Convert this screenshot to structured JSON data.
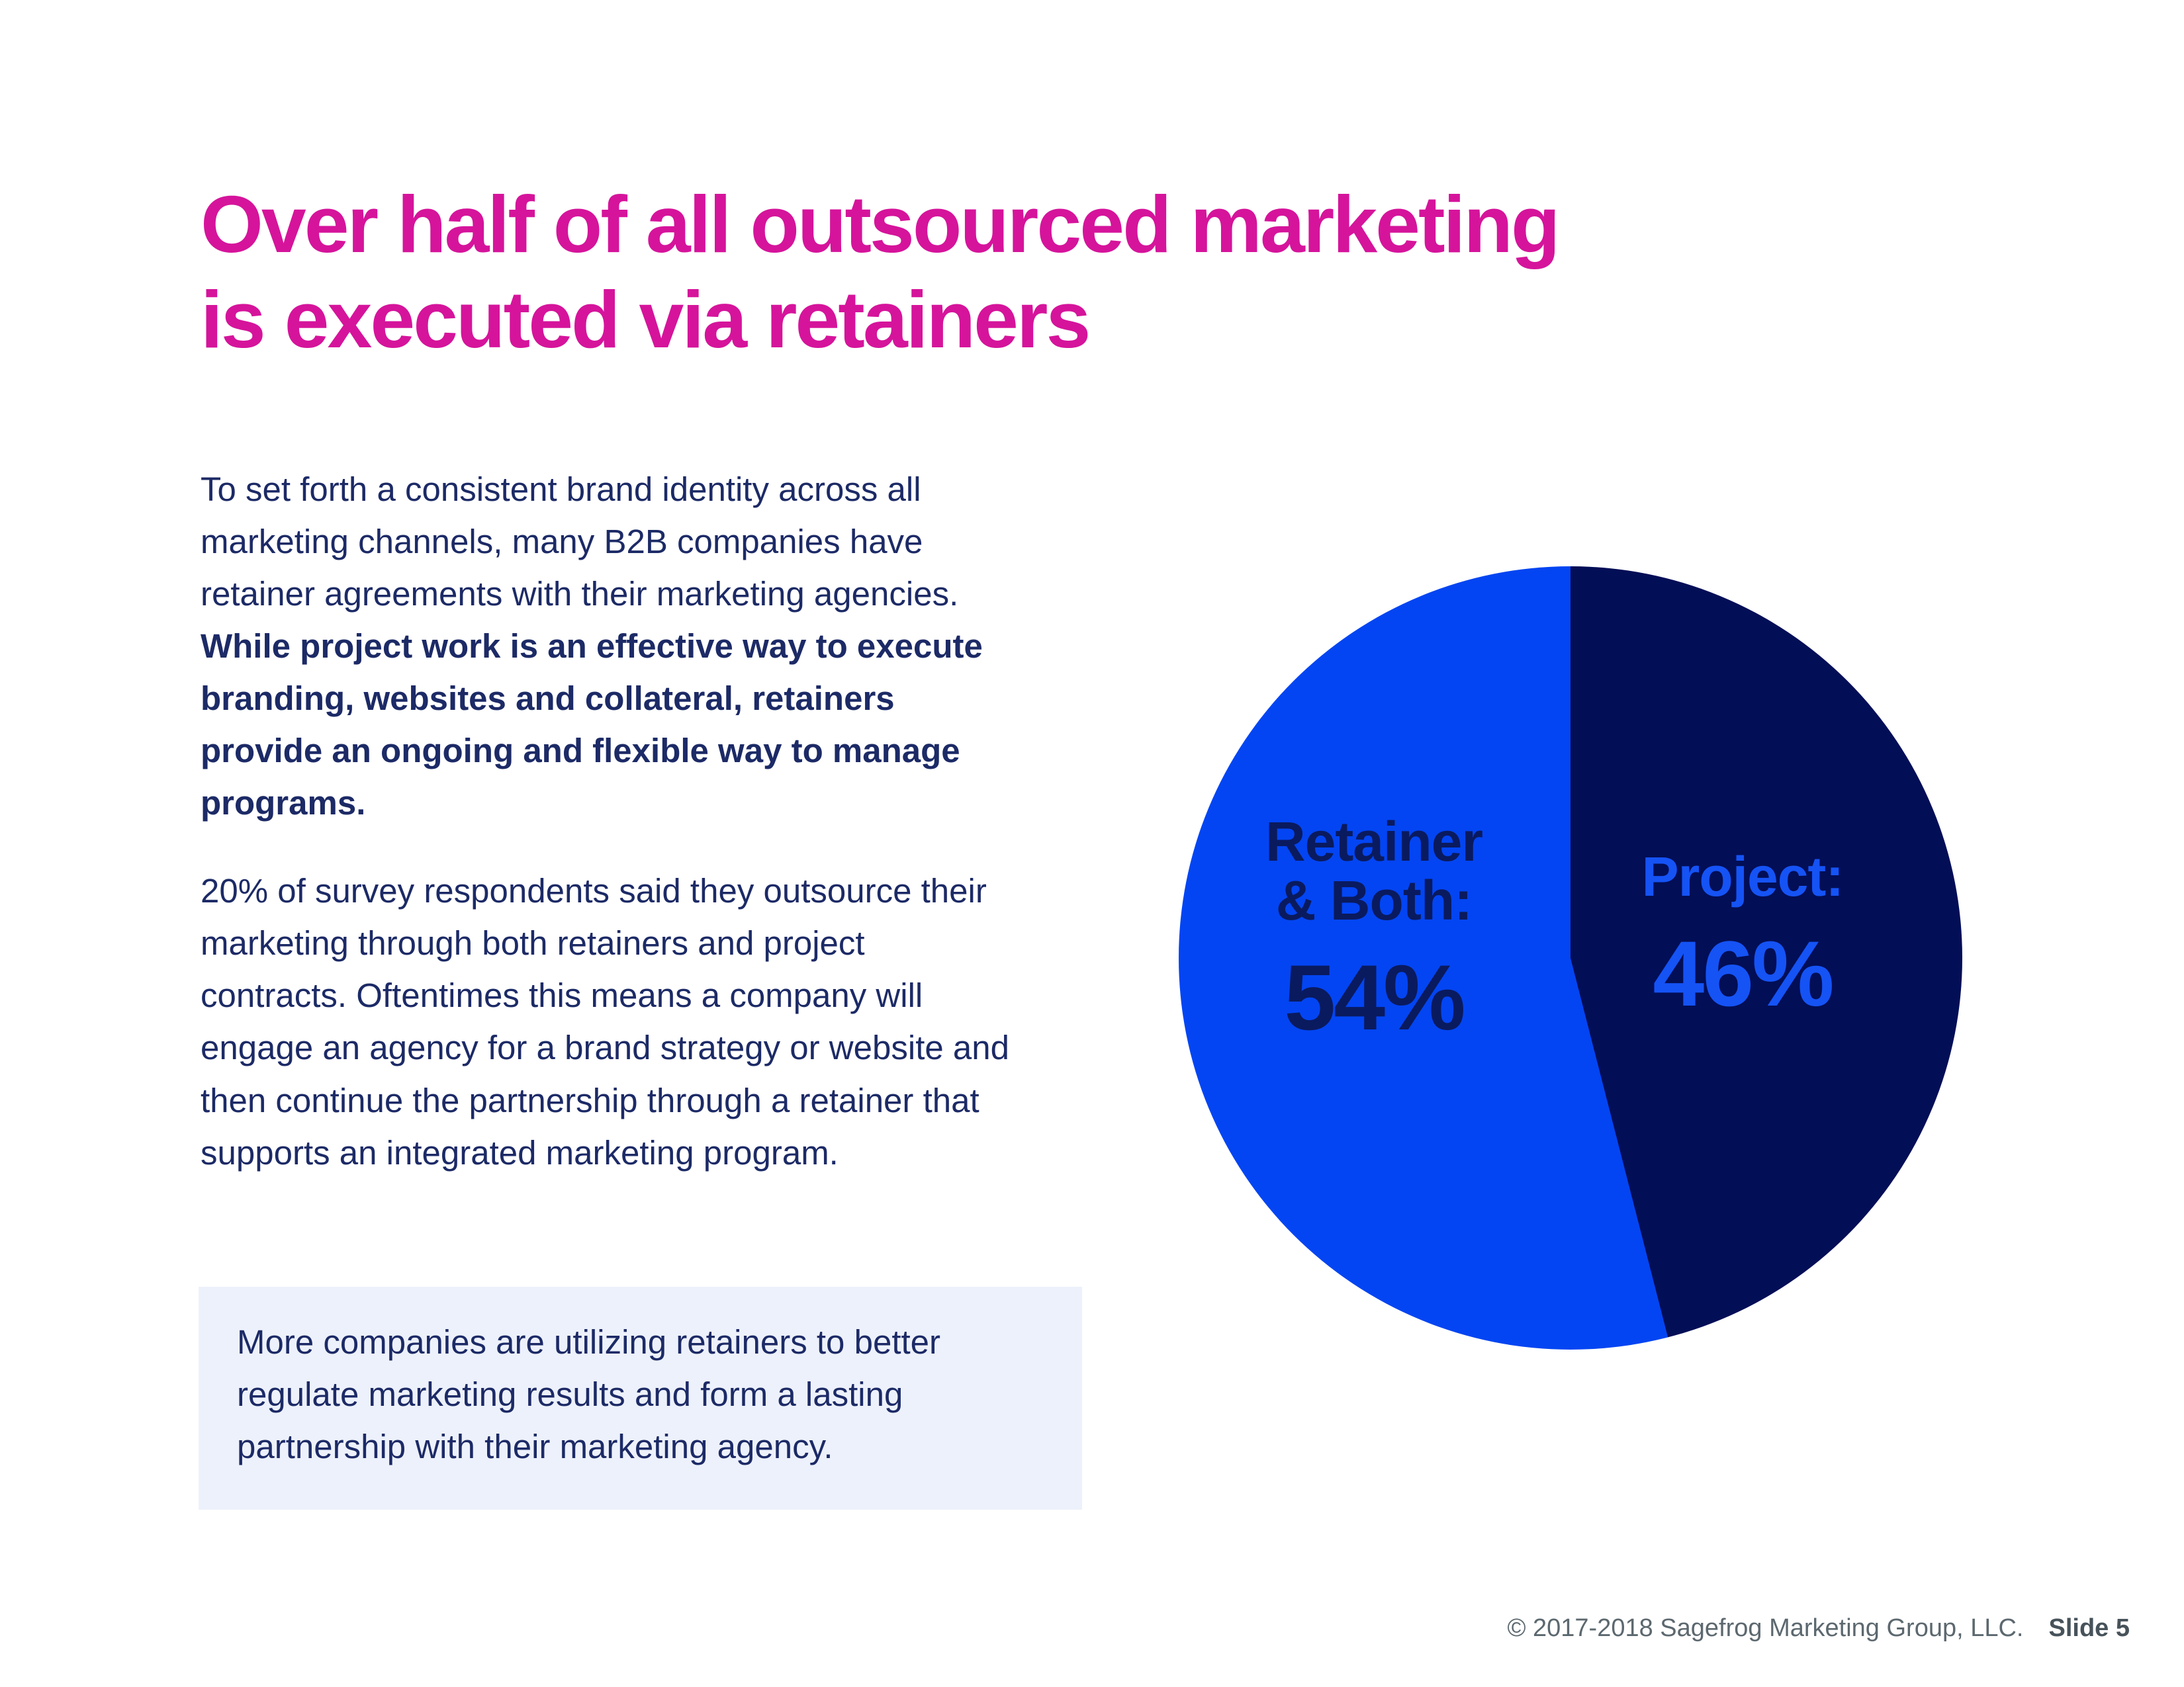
{
  "title": {
    "line1": "Over half of all outsourced marketing",
    "line2": "is executed via retainers",
    "color": "#d5149b"
  },
  "body": {
    "para1_regular": "To set forth a consistent brand identity across all marketing channels, many B2B companies have retainer agreements with their marketing agencies. ",
    "para1_bold": "While project work is an effective way to execute branding, websites and collateral, retainers provide an ongoing and flexible way to manage programs.",
    "para2": "20% of survey respondents said they outsource their marketing through both retainers and project contracts. Oftentimes this means a company will engage an agency for a brand strategy or website and then continue the partnership through a retainer that supports an integrated marketing program.",
    "text_color": "#1c2a66"
  },
  "callout": {
    "text": "More companies are utilizing retainers to better regulate marketing results and form a lasting partnership with their marketing agency.",
    "background": "#edf1fb"
  },
  "chart_data": {
    "type": "pie",
    "title": "Outsourced marketing engagement model",
    "legend": "labels-inside-slices",
    "start_angle_deg": 0,
    "direction": "clockwise",
    "slices": [
      {
        "label": "Retainer & Both",
        "label_lines": [
          "Retainer",
          "& Both:"
        ],
        "value": 54,
        "value_label": "54%",
        "color": "#0345f2",
        "text_color": "#0a1a5e",
        "position": "left"
      },
      {
        "label": "Project",
        "label_lines": [
          "Project:"
        ],
        "value": 46,
        "value_label": "46%",
        "color": "#020e56",
        "text_color": "#1553f5",
        "position": "right"
      }
    ]
  },
  "footer": {
    "copyright": "© 2017-2018 Sagefrog Marketing Group, LLC.",
    "slide_label": "Slide 5"
  },
  "colors": {
    "background": "#ffffff",
    "title_pink": "#d5149b",
    "body_navy": "#1c2a66",
    "slice_blue": "#0345f2",
    "slice_navy": "#020e56",
    "callout_bg": "#edf1fb",
    "footer_gray": "#5c686f"
  }
}
